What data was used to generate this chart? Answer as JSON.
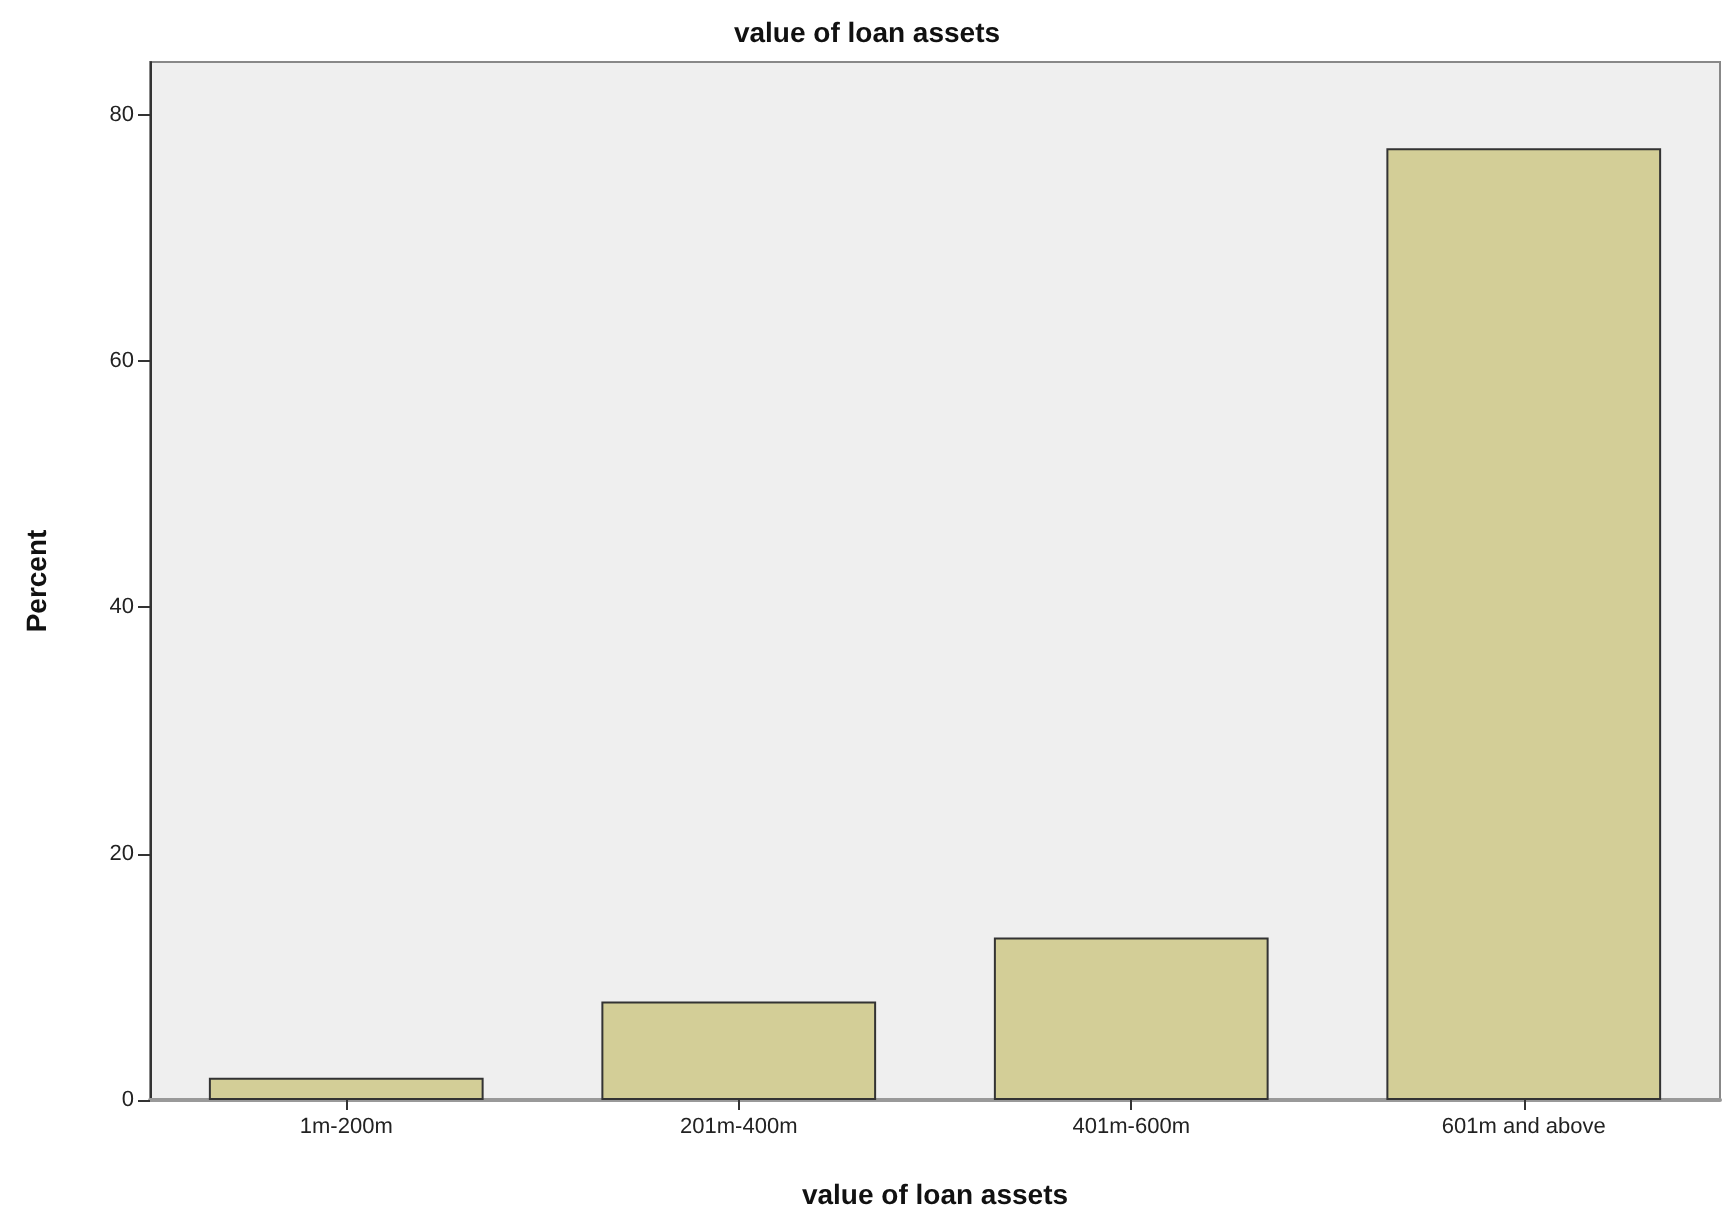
{
  "chart_data": {
    "type": "bar",
    "title": "value of loan assets",
    "xlabel": "value of loan assets",
    "ylabel": "Percent",
    "categories": [
      "1m-200m",
      "201m-400m",
      "401m-600m",
      "601m and above"
    ],
    "values": [
      1.8,
      8.0,
      13.2,
      77.3
    ],
    "color": "#d3ce97",
    "ylim": [
      0,
      84.3
    ],
    "yticks": [
      0,
      20,
      40,
      60,
      80
    ]
  }
}
